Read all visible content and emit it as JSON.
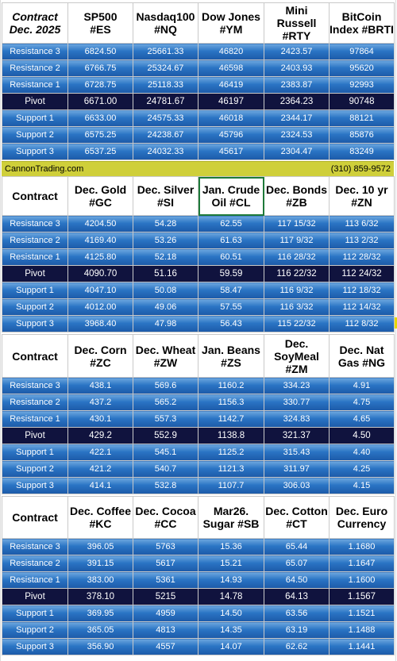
{
  "banner": {
    "site": "CannonTrading.com",
    "phone": "(310) 859-9572"
  },
  "row_labels": [
    "Resistance 3",
    "Resistance 2",
    "Resistance 1",
    "Pivot",
    "Support 1",
    "Support 2",
    "Support 3"
  ],
  "colors": {
    "level_row": "#2a74c4",
    "pivot_row": "#10133e",
    "banner": "#cfcf3a",
    "selection": "#1e7a3a"
  },
  "tables": [
    {
      "header": [
        [
          "Contract",
          "Dec. 2025"
        ],
        [
          "SP500",
          "#ES"
        ],
        [
          "Nasdaq100",
          "#NQ"
        ],
        [
          "Dow Jones",
          "#YM"
        ],
        [
          "Mini Russell",
          "#RTY"
        ],
        [
          "BitCoin",
          "Index #BRTI"
        ]
      ],
      "rows": [
        [
          "6824.50",
          "25661.33",
          "46820",
          "2423.57",
          "97864"
        ],
        [
          "6766.75",
          "25324.67",
          "46598",
          "2403.93",
          "95620"
        ],
        [
          "6728.75",
          "25118.33",
          "46419",
          "2383.87",
          "92993"
        ],
        [
          "6671.00",
          "24781.67",
          "46197",
          "2364.23",
          "90748"
        ],
        [
          "6633.00",
          "24575.33",
          "46018",
          "2344.17",
          "88121"
        ],
        [
          "6575.25",
          "24238.67",
          "45796",
          "2324.53",
          "85876"
        ],
        [
          "6537.25",
          "24032.33",
          "45617",
          "2304.47",
          "83249"
        ]
      ]
    },
    {
      "header": [
        [
          "Contract"
        ],
        [
          "Dec. Gold",
          "#GC"
        ],
        [
          "Dec. Silver",
          "#SI"
        ],
        [
          "Jan. Crude",
          "Oil #CL"
        ],
        [
          "Dec. Bonds",
          "#ZB"
        ],
        [
          "Dec. 10 yr",
          "#ZN"
        ]
      ],
      "rows": [
        [
          "4204.50",
          "54.28",
          "62.55",
          "117 15/32",
          "113  6/32"
        ],
        [
          "4169.40",
          "53.26",
          "61.63",
          "117  9/32",
          "113  2/32"
        ],
        [
          "4125.80",
          "52.18",
          "60.51",
          "116 28/32",
          "112 28/32"
        ],
        [
          "4090.70",
          "51.16",
          "59.59",
          "116 22/32",
          "112 24/32"
        ],
        [
          "4047.10",
          "50.08",
          "58.47",
          "116  9/32",
          "112 18/32"
        ],
        [
          "4012.00",
          "49.06",
          "57.55",
          "116  3/32",
          "112 14/32"
        ],
        [
          "3968.40",
          "47.98",
          "56.43",
          "115 22/32",
          "112  8/32"
        ]
      ]
    },
    {
      "header": [
        [
          "Contract"
        ],
        [
          "Dec. Corn",
          "#ZC"
        ],
        [
          "Dec.  Wheat",
          "#ZW"
        ],
        [
          "Jan. Beans",
          "#ZS"
        ],
        [
          "Dec.",
          "SoyMeal",
          "#ZM"
        ],
        [
          "Dec. Nat",
          "Gas #NG"
        ]
      ],
      "rows": [
        [
          "438.1",
          "569.6",
          "1160.2",
          "334.23",
          "4.91"
        ],
        [
          "437.2",
          "565.2",
          "1156.3",
          "330.77",
          "4.75"
        ],
        [
          "430.1",
          "557.3",
          "1142.7",
          "324.83",
          "4.65"
        ],
        [
          "429.2",
          "552.9",
          "1138.8",
          "321.37",
          "4.50"
        ],
        [
          "422.1",
          "545.1",
          "1125.2",
          "315.43",
          "4.40"
        ],
        [
          "421.2",
          "540.7",
          "1121.3",
          "311.97",
          "4.25"
        ],
        [
          "414.1",
          "532.8",
          "1107.7",
          "306.03",
          "4.15"
        ]
      ]
    },
    {
      "header": [
        [
          "Contract"
        ],
        [
          "Dec. Coffee",
          "#KC"
        ],
        [
          "Dec. Cocoa",
          "#CC"
        ],
        [
          "Mar26.",
          "Sugar #SB"
        ],
        [
          "Dec. Cotton",
          "#CT"
        ],
        [
          "Dec. Euro",
          "Currency"
        ]
      ],
      "rows": [
        [
          "396.05",
          "5763",
          "15.36",
          "65.44",
          "1.1680"
        ],
        [
          "391.15",
          "5617",
          "15.21",
          "65.07",
          "1.1647"
        ],
        [
          "383.00",
          "5361",
          "14.93",
          "64.50",
          "1.1600"
        ],
        [
          "378.10",
          "5215",
          "14.78",
          "64.13",
          "1.1567"
        ],
        [
          "369.95",
          "4959",
          "14.50",
          "63.56",
          "1.1521"
        ],
        [
          "365.05",
          "4813",
          "14.35",
          "63.19",
          "1.1488"
        ],
        [
          "356.90",
          "4557",
          "14.07",
          "62.62",
          "1.1441"
        ]
      ]
    }
  ]
}
